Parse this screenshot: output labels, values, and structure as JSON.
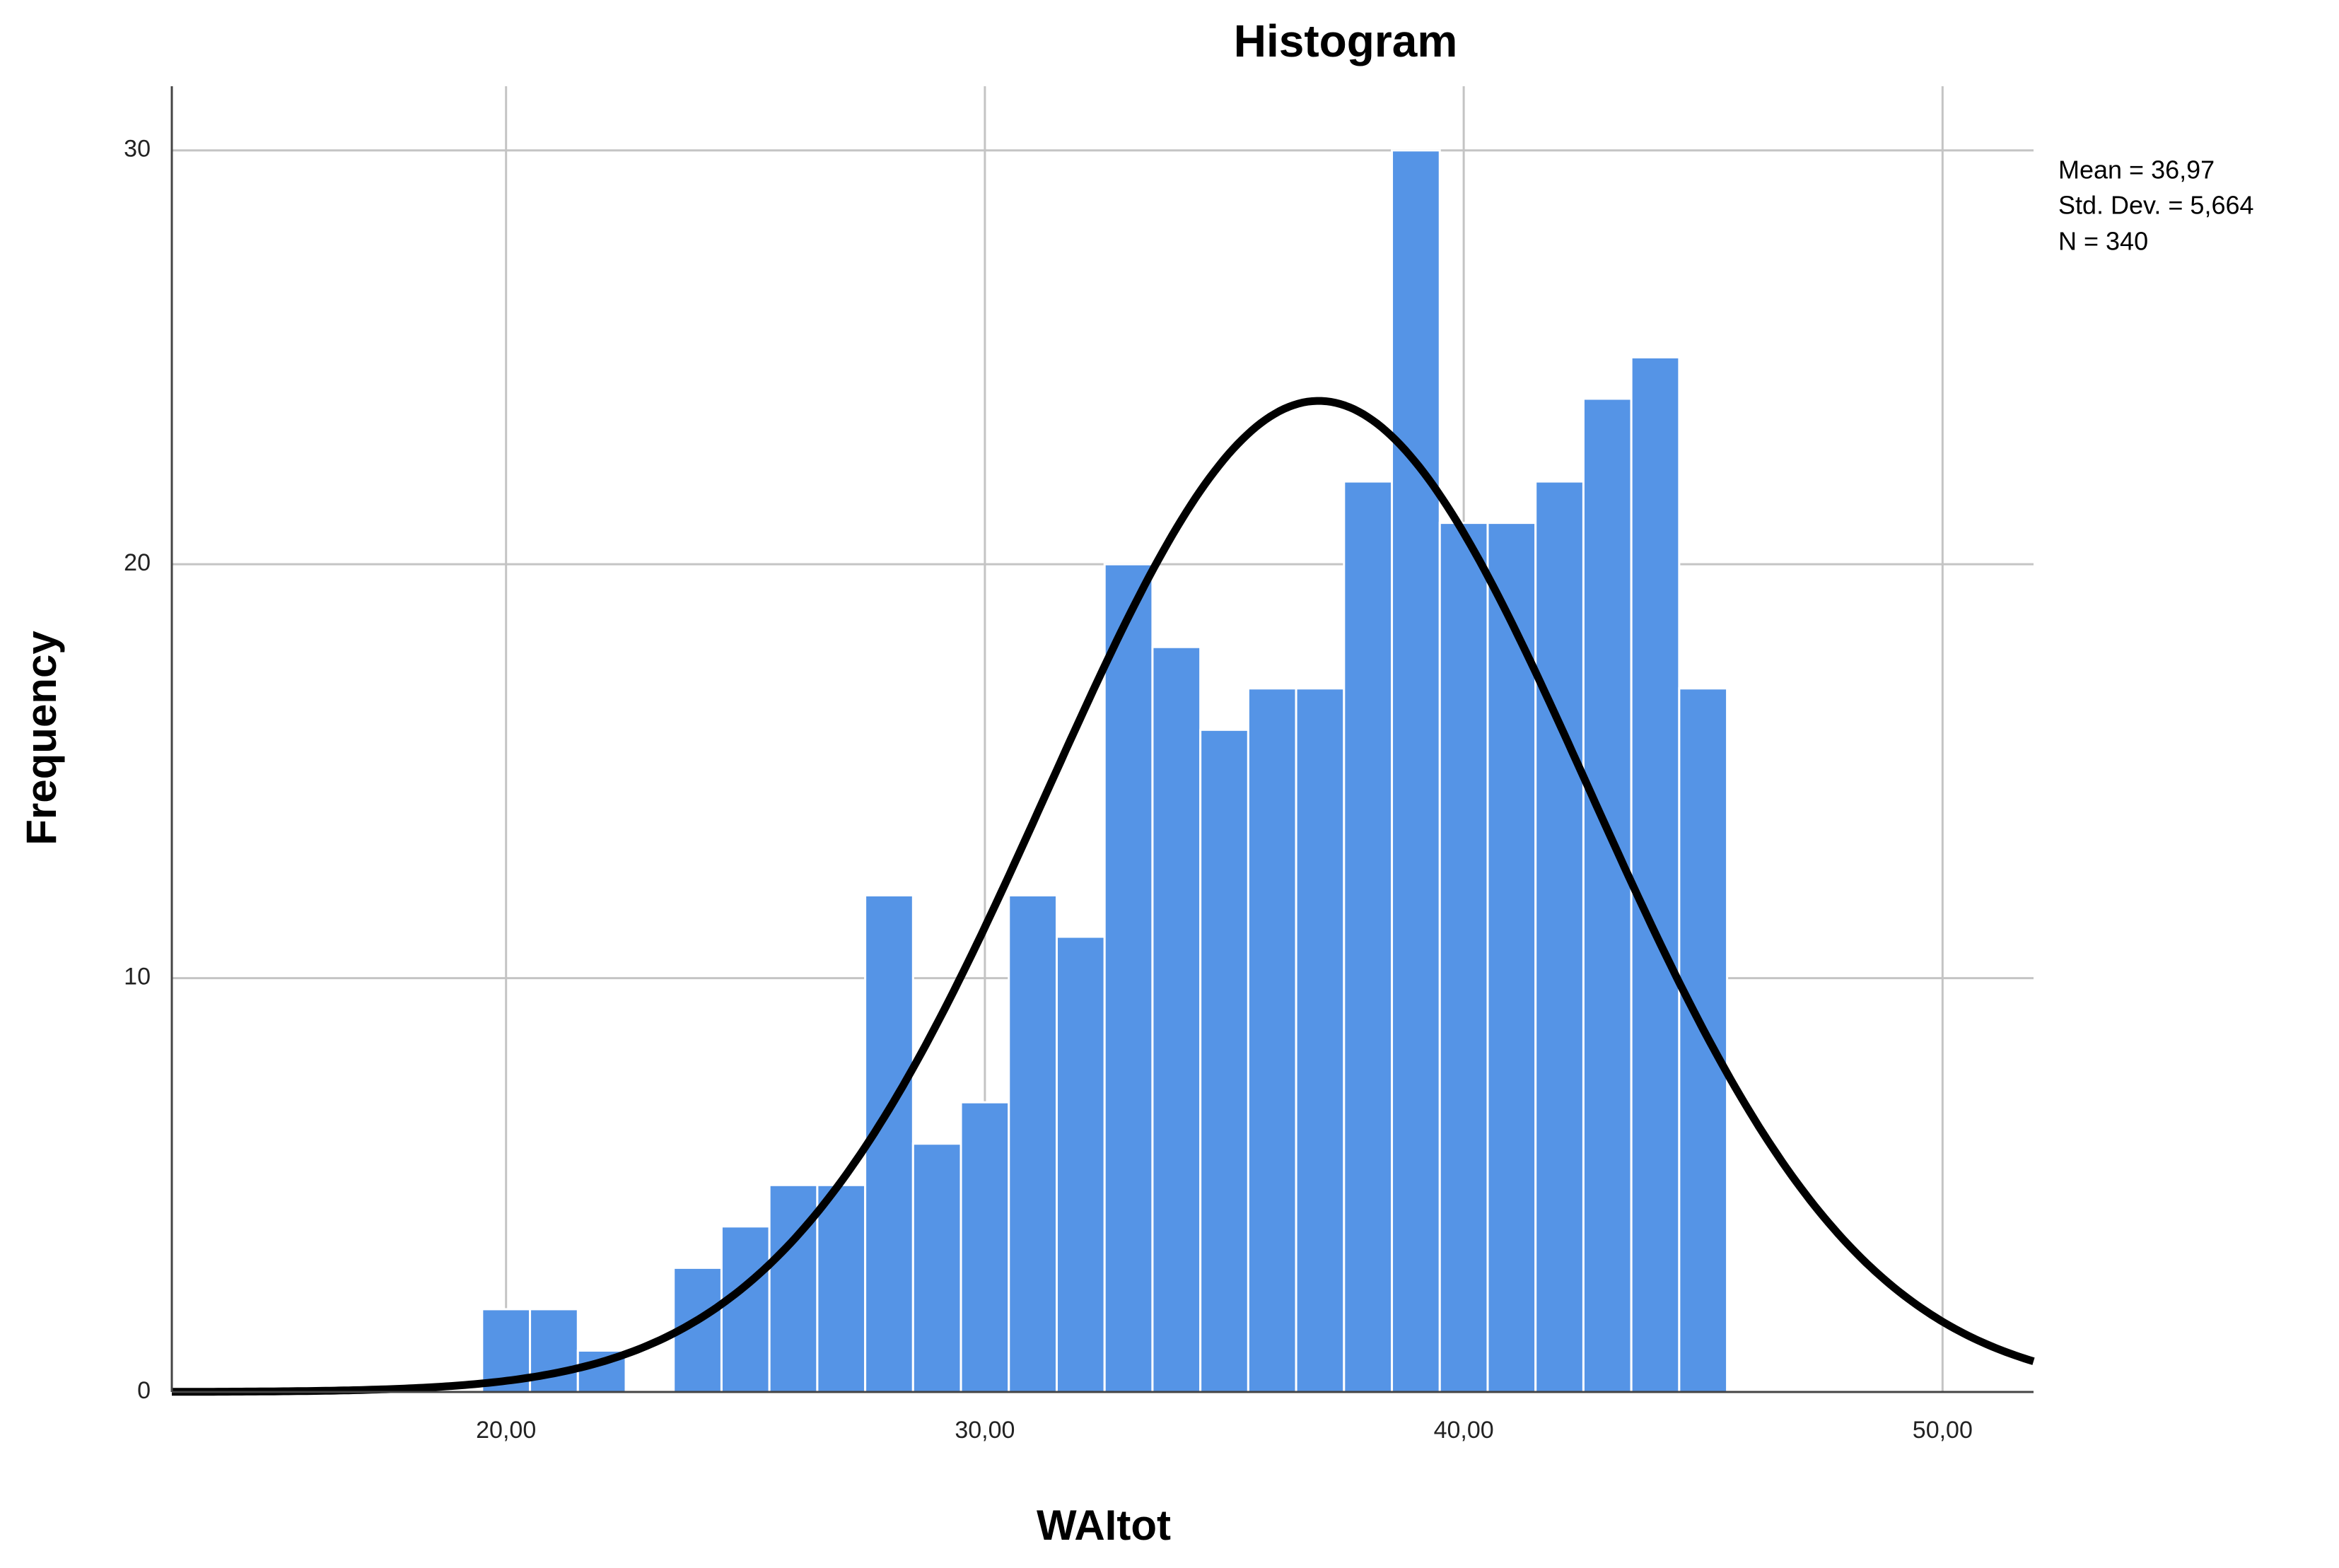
{
  "chart_data": {
    "type": "histogram",
    "title": "Histogram",
    "x_label": "WAItot",
    "y_label": "Frequency",
    "bins": [
      19.5,
      20.5,
      21.5,
      22.5,
      23.5,
      24.5,
      25.5,
      26.5,
      27.5,
      28.5,
      29.5,
      30.5,
      31.5,
      32.5,
      33.5,
      34.5,
      35.5,
      36.5,
      37.5,
      38.5,
      39.5,
      40.5,
      41.5,
      42.5,
      43.5,
      44.5,
      45.5
    ],
    "values": [
      2,
      2,
      1,
      0,
      3,
      4,
      5,
      5,
      12,
      6,
      7,
      12,
      11,
      20,
      18,
      16,
      17,
      17,
      22,
      30,
      21,
      21,
      22,
      24,
      25,
      17
    ],
    "color": "#5594e6",
    "curve_color": "#000000",
    "stats": {
      "mean": {
        "value": 36.97,
        "label": "Mean = 36,97"
      },
      "std": {
        "value": 5.664,
        "label": "Std. Dev. = 5,664"
      },
      "n": {
        "value": 340,
        "label": "N = 340"
      }
    },
    "xlim": [
      13.02,
      51.9
    ],
    "ylim": [
      0,
      31.55
    ],
    "xticks": [
      {
        "value": 20,
        "label": "20,00"
      },
      {
        "value": 30,
        "label": "30,00"
      },
      {
        "value": 40,
        "label": "40,00"
      },
      {
        "value": 50,
        "label": "50,00"
      }
    ],
    "yticks": [
      0,
      10,
      20,
      30
    ],
    "grid": true
  }
}
